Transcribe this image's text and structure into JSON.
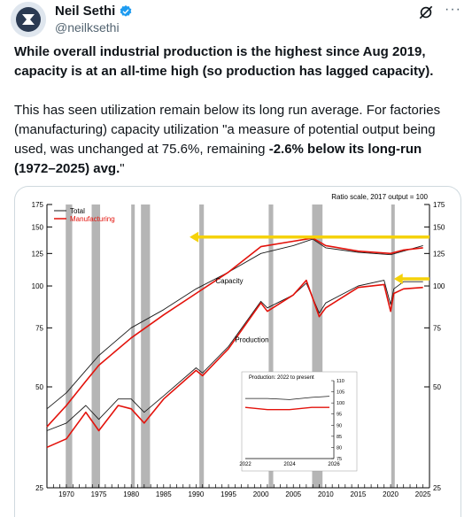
{
  "post": {
    "author": {
      "display_name": "Neil Sethi",
      "handle": "@neilksethi",
      "avatar_icon": "portrait-avatar",
      "verified_icon": "verified-badge-icon",
      "verified_color": "#1d9bf0"
    },
    "icons": {
      "grok": "grok-icon",
      "more": "more-options-icon"
    },
    "text": {
      "p1": "While overall industrial production is the highest since Aug 2019, capacity is at an all-time high (so production has lagged capacity).",
      "p2_part1": "This has seen utilization remain below its long run average.  For factories (manufacturing) capacity utilization \"a measure of potential output being used, was unchanged at 75.6%, remaining ",
      "p2_bold": "-2.6% below its long-run (1972–2025) avg.",
      "p2_end": "\""
    }
  },
  "chart_data": {
    "type": "line",
    "annotation_top": "Ratio scale, 2017 output = 100",
    "legend": [
      "Total",
      "Manufacturing"
    ],
    "colors": {
      "total": "#1a1a1a",
      "manufacturing": "#e3120b",
      "arrows": "#f5d20a",
      "recession": "#b5b5b5"
    },
    "y_scale": "log",
    "ylim": [
      25,
      175
    ],
    "y_ticks": [
      25,
      50,
      75,
      100,
      125,
      150,
      175
    ],
    "xlim": [
      1967,
      2026
    ],
    "x_ticks": [
      1970,
      1975,
      1980,
      1985,
      1990,
      1995,
      2000,
      2005,
      2010,
      2015,
      2020,
      2025
    ],
    "recessions": [
      [
        1969.9,
        1970.9
      ],
      [
        1973.9,
        1975.2
      ],
      [
        1980.0,
        1980.5
      ],
      [
        1981.5,
        1982.9
      ],
      [
        1990.5,
        1991.2
      ],
      [
        2001.2,
        2001.9
      ],
      [
        2007.9,
        2009.5
      ],
      [
        2020.1,
        2020.4
      ]
    ],
    "series_labels": {
      "capacity": "Capacity",
      "production": "Production"
    },
    "series": [
      {
        "name": "Total",
        "x": [
          1967,
          1970,
          1973,
          1975,
          1980,
          1985,
          1990,
          1995,
          2000,
          2005,
          2008,
          2010,
          2015,
          2020,
          2022,
          2025
        ],
        "values": [
          43,
          48,
          56,
          62,
          75,
          85,
          98,
          110,
          125,
          132,
          138,
          130,
          126,
          124,
          127,
          132
        ],
        "kind": "capacity"
      },
      {
        "name": "Manufacturing",
        "x": [
          1967,
          1970,
          1973,
          1975,
          1980,
          1985,
          1990,
          1995,
          2000,
          2005,
          2008,
          2010,
          2015,
          2020,
          2022,
          2025
        ],
        "values": [
          38,
          44,
          52,
          58,
          70,
          82,
          95,
          110,
          131,
          136,
          139,
          132,
          127,
          125,
          128,
          130
        ],
        "kind": "capacity"
      },
      {
        "name": "Total",
        "x": [
          1967,
          1970,
          1973,
          1975,
          1978,
          1980,
          1982,
          1985,
          1990,
          1991,
          1995,
          2000,
          2001,
          2005,
          2007,
          2009,
          2010,
          2015,
          2019,
          2020,
          2020.5,
          2022,
          2025
        ],
        "values": [
          37,
          39,
          44,
          40,
          46,
          46,
          42,
          47,
          57,
          55,
          66,
          90,
          86,
          94,
          102,
          83,
          89,
          100,
          104,
          88,
          98,
          103,
          103
        ],
        "kind": "production"
      },
      {
        "name": "Manufacturing",
        "x": [
          1967,
          1970,
          1973,
          1975,
          1978,
          1980,
          1982,
          1985,
          1990,
          1991,
          1995,
          2000,
          2001,
          2005,
          2007,
          2009,
          2010,
          2015,
          2019,
          2020,
          2020.5,
          2022,
          2025
        ],
        "values": [
          33,
          35,
          42,
          37,
          44,
          43,
          39,
          46,
          56,
          54,
          65,
          89,
          84,
          94,
          104,
          81,
          86,
          99,
          101,
          84,
          95,
          98,
          99
        ],
        "kind": "production"
      }
    ],
    "inset": {
      "title": "Production: 2022 to present",
      "ylim": [
        75,
        110
      ],
      "y_ticks": [
        75,
        80,
        85,
        90,
        95,
        100,
        105,
        110
      ],
      "x_ticks": [
        2022,
        2024,
        2026
      ],
      "series": [
        {
          "name": "Total",
          "x": [
            2022,
            2023,
            2024,
            2025,
            2025.8
          ],
          "values": [
            102,
            102,
            101.5,
            102.5,
            103
          ]
        },
        {
          "name": "Manufacturing",
          "x": [
            2022,
            2023,
            2024,
            2025,
            2025.8
          ],
          "values": [
            98,
            97,
            97,
            98,
            98
          ]
        }
      ]
    },
    "arrows": [
      {
        "from": [
          2026,
          140
        ],
        "to": [
          1989,
          140
        ]
      },
      {
        "from": [
          2026,
          105
        ],
        "to": [
          2020.5,
          105
        ]
      }
    ]
  }
}
